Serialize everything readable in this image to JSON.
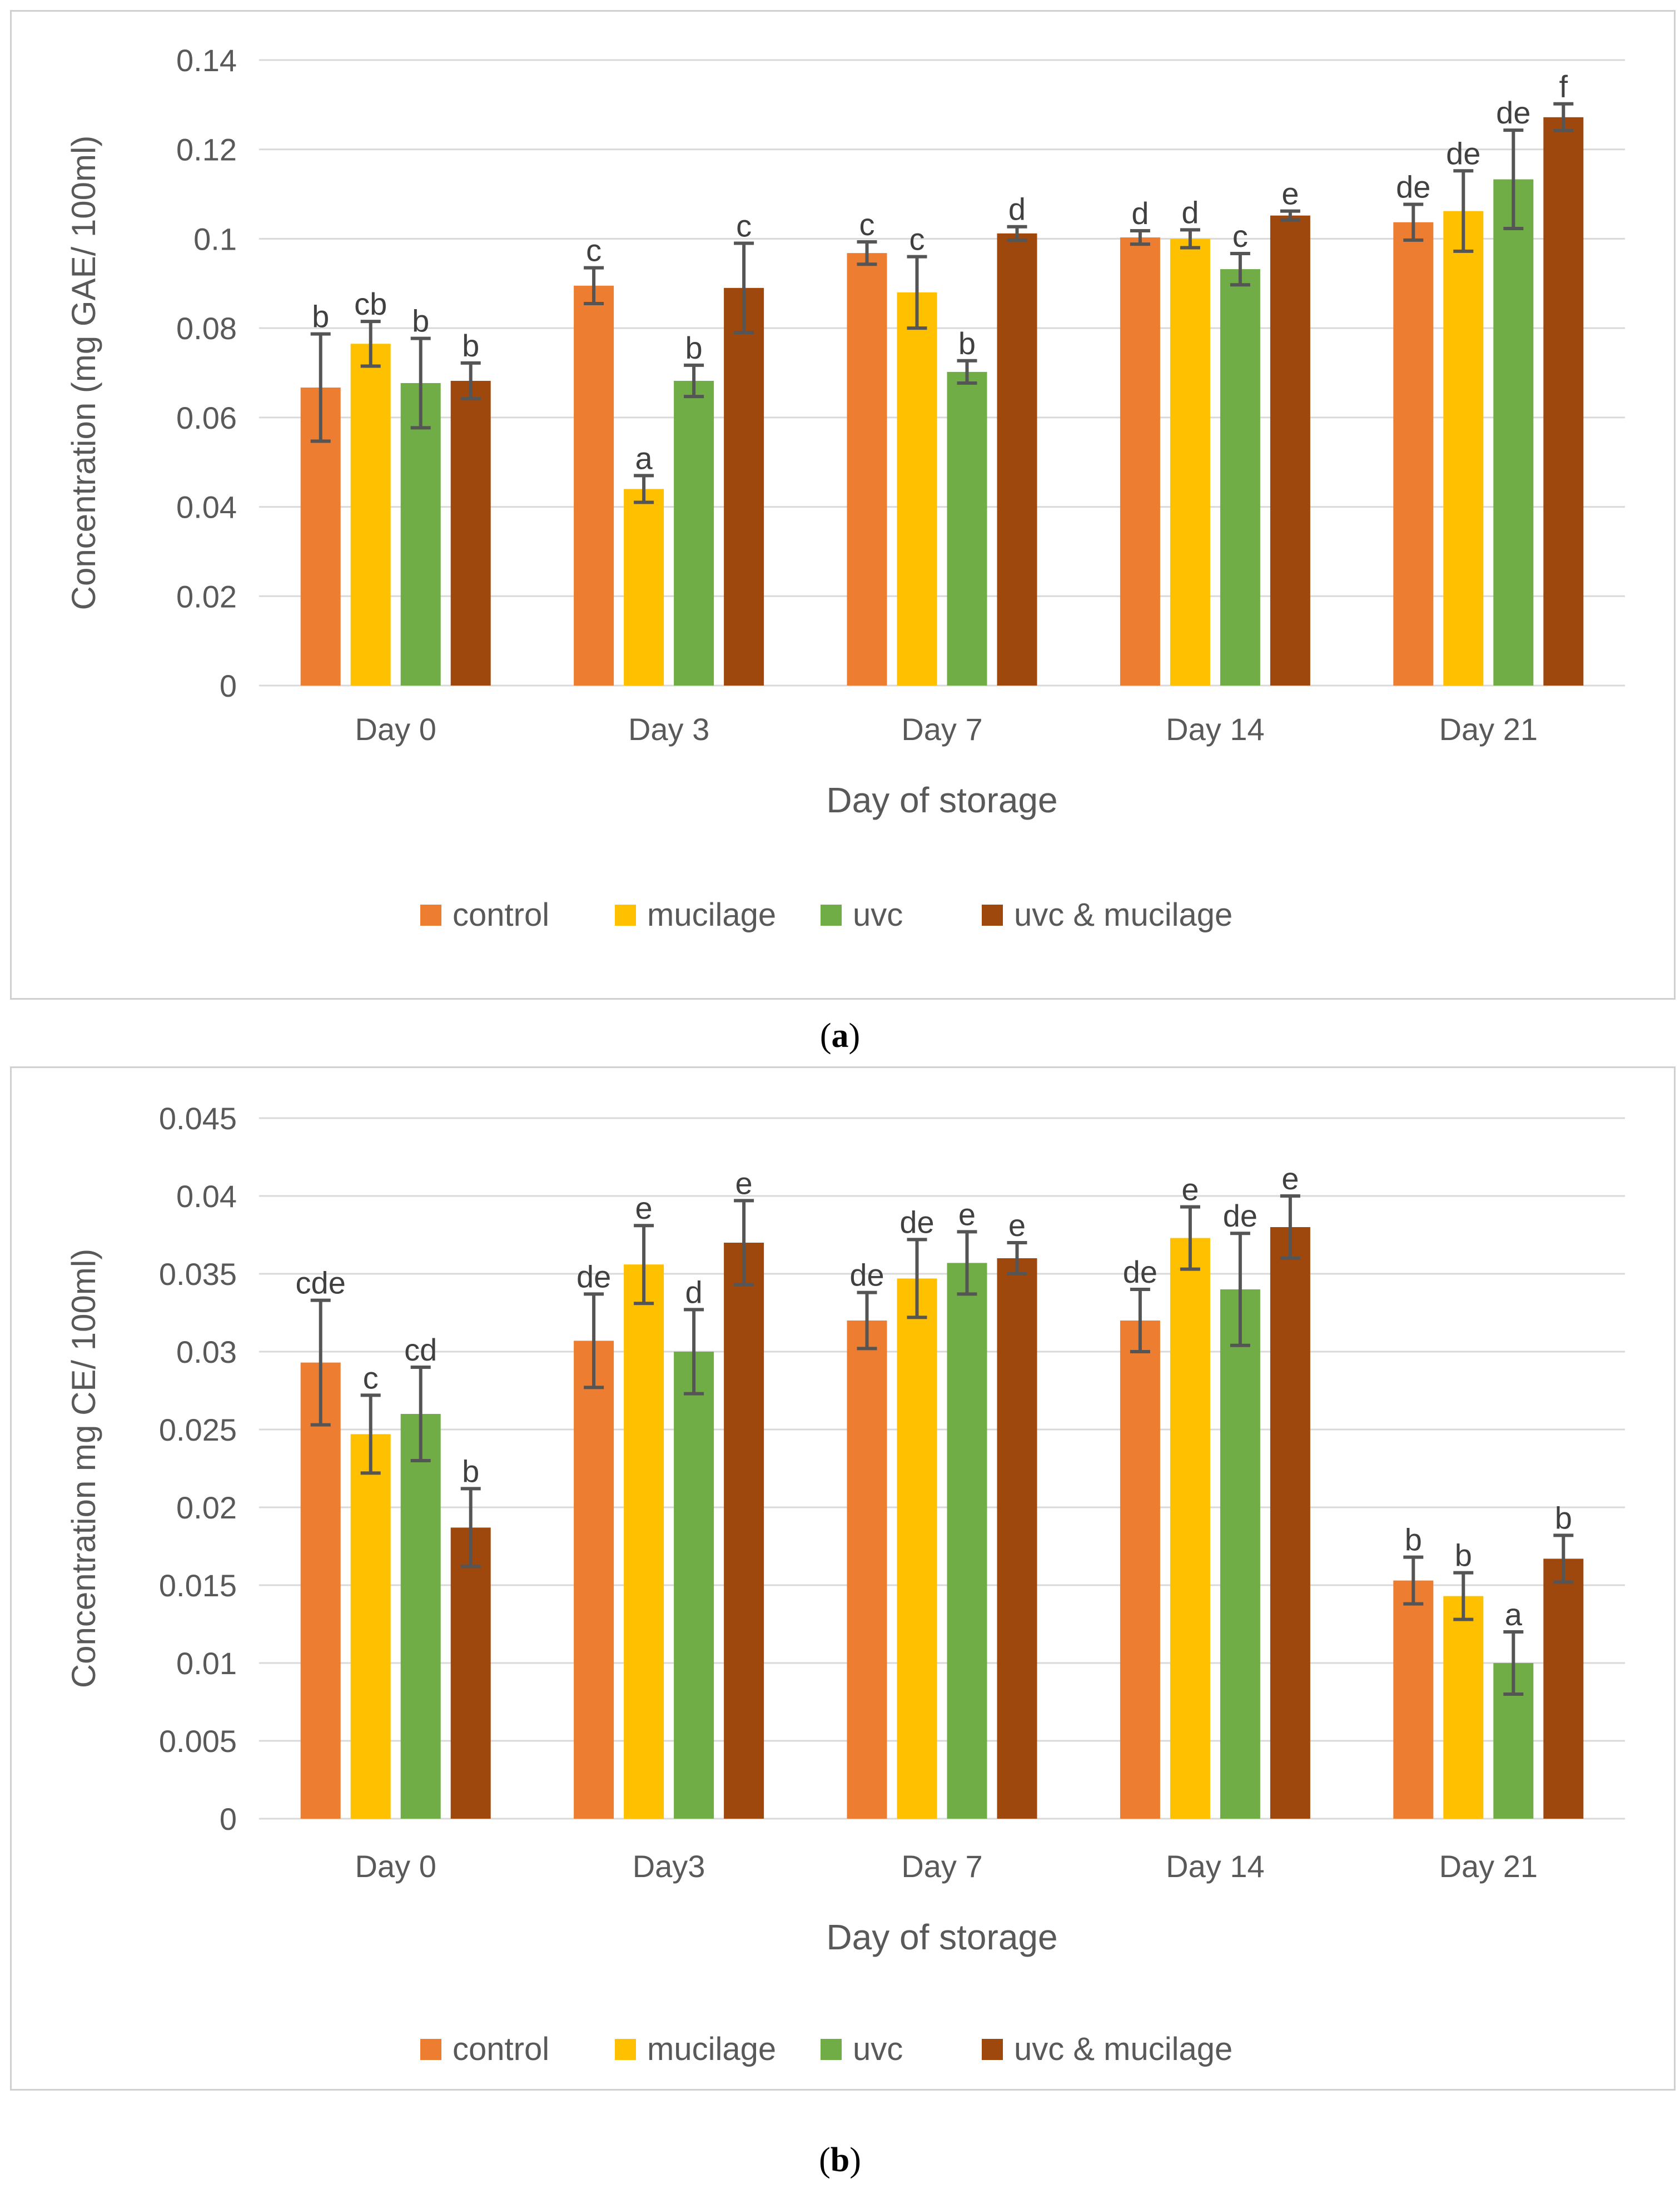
{
  "colors": {
    "control": "#ED7D31",
    "mucilage": "#FFC000",
    "uvc": "#70AD47",
    "uvc_mucilage": "#9E480E",
    "grid": "#D9D9D9",
    "text": "#595959",
    "errorbar": "#555555"
  },
  "captions": {
    "a_open": "(",
    "a_letter": "a",
    "a_close": ")",
    "b_open": "(",
    "b_letter": "b",
    "b_close": ")"
  },
  "chart_data": [
    {
      "id": "a",
      "type": "bar",
      "title": "",
      "xlabel": "Day of storage",
      "ylabel": "Concentration (mg GAE/ 100ml)",
      "ylim": [
        0,
        0.14
      ],
      "yticks": [
        0,
        0.02,
        0.04,
        0.06,
        0.08,
        0.1,
        0.12,
        0.14
      ],
      "ytick_labels": [
        "0",
        "0.02",
        "0.04",
        "0.06",
        "0.08",
        "0.1",
        "0.12",
        "0.14"
      ],
      "categories": [
        "Day 0",
        "Day 3",
        "Day 7",
        "Day 14",
        "Day 21"
      ],
      "legend_position": "bottom",
      "grid": true,
      "series": [
        {
          "name": "control",
          "color_key": "control",
          "values": [
            0.0667,
            0.0895,
            0.0968,
            0.1003,
            0.1037
          ],
          "errors": [
            0.012,
            0.004,
            0.0025,
            0.0015,
            0.004
          ],
          "labels": [
            "b",
            "c",
            "c",
            "d",
            "de"
          ]
        },
        {
          "name": "mucilage",
          "color_key": "mucilage",
          "values": [
            0.0765,
            0.044,
            0.088,
            0.1,
            0.1062
          ],
          "errors": [
            0.005,
            0.003,
            0.008,
            0.002,
            0.009
          ],
          "labels": [
            "cb",
            "a",
            "c",
            "d",
            "de"
          ]
        },
        {
          "name": "uvc",
          "color_key": "uvc",
          "values": [
            0.0677,
            0.0682,
            0.0702,
            0.0932,
            0.1133
          ],
          "errors": [
            0.01,
            0.0035,
            0.0025,
            0.0035,
            0.011
          ],
          "labels": [
            "b",
            "b",
            "b",
            "c",
            "de"
          ]
        },
        {
          "name": "uvc & mucilage",
          "color_key": "uvc_mucilage",
          "values": [
            0.0682,
            0.089,
            0.1012,
            0.1052,
            0.1272
          ],
          "errors": [
            0.004,
            0.01,
            0.0015,
            0.001,
            0.003
          ],
          "labels": [
            "b",
            "c",
            "d",
            "e",
            "f"
          ]
        }
      ]
    },
    {
      "id": "b",
      "type": "bar",
      "title": "",
      "xlabel": "Day of storage",
      "ylabel": "Concentration mg CE/ 100ml)",
      "ylim": [
        0,
        0.045
      ],
      "yticks": [
        0,
        0.005,
        0.01,
        0.015,
        0.02,
        0.025,
        0.03,
        0.035,
        0.04,
        0.045
      ],
      "ytick_labels": [
        "0",
        "0.005",
        "0.01",
        "0.015",
        "0.02",
        "0.025",
        "0.03",
        "0.035",
        "0.04",
        "0.045"
      ],
      "categories": [
        "Day 0",
        "Day3",
        "Day 7",
        "Day 14",
        "Day 21"
      ],
      "legend_position": "bottom",
      "grid": true,
      "series": [
        {
          "name": "control",
          "color_key": "control",
          "values": [
            0.0293,
            0.0307,
            0.032,
            0.032,
            0.0153
          ],
          "errors": [
            0.004,
            0.003,
            0.0018,
            0.002,
            0.0015
          ],
          "labels": [
            "cde",
            "de",
            "de",
            "de",
            "b"
          ]
        },
        {
          "name": "mucilage",
          "color_key": "mucilage",
          "values": [
            0.0247,
            0.0356,
            0.0347,
            0.0373,
            0.0143
          ],
          "errors": [
            0.0025,
            0.0025,
            0.0025,
            0.002,
            0.0015
          ],
          "labels": [
            "c",
            "e",
            "de",
            "e",
            "b"
          ]
        },
        {
          "name": "uvc",
          "color_key": "uvc",
          "values": [
            0.026,
            0.03,
            0.0357,
            0.034,
            0.01
          ],
          "errors": [
            0.003,
            0.0027,
            0.002,
            0.0036,
            0.002
          ],
          "labels": [
            "cd",
            "d",
            "e",
            "de",
            "a"
          ]
        },
        {
          "name": "uvc & mucilage",
          "color_key": "uvc_mucilage",
          "values": [
            0.0187,
            0.037,
            0.036,
            0.038,
            0.0167
          ],
          "errors": [
            0.0025,
            0.0027,
            0.001,
            0.002,
            0.0015
          ],
          "labels": [
            "b",
            "e",
            "e",
            "e",
            "b"
          ]
        }
      ]
    }
  ]
}
